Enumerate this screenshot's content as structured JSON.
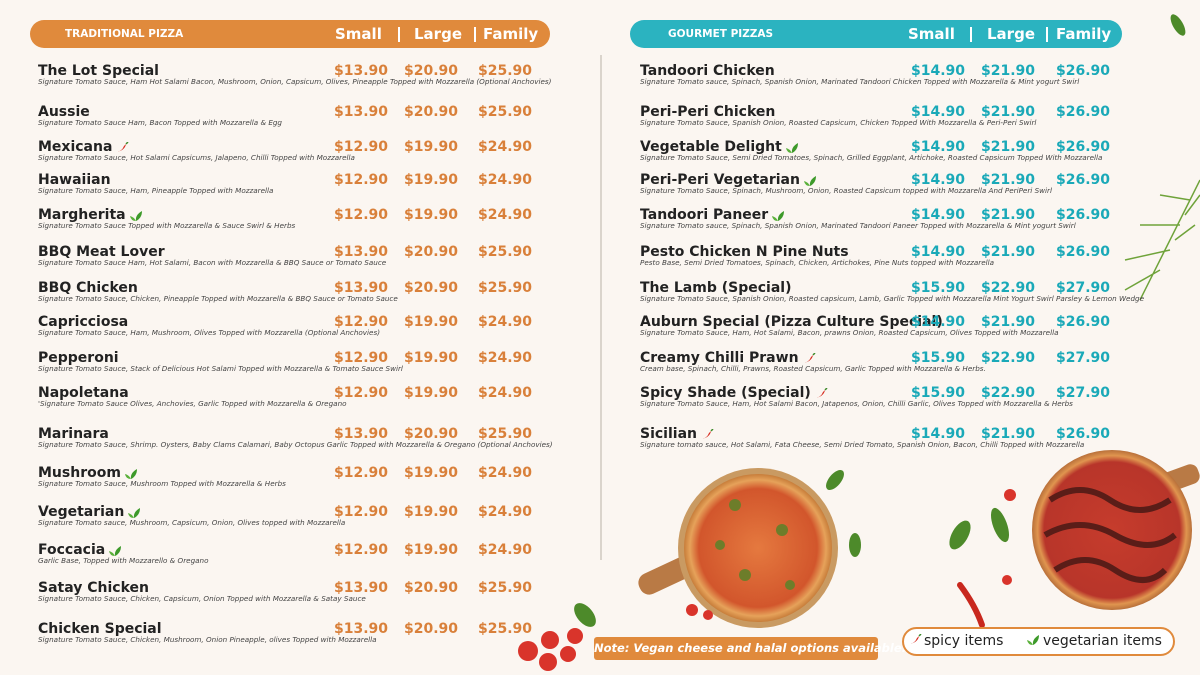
{
  "sections": [
    {
      "title": "TRADITIONAL PIZZA",
      "sizes": [
        "Small",
        "Large",
        "Family"
      ],
      "items": [
        {
          "name": "The Lot Special",
          "description": "Signature Tomato Sauce, Ham Hot Salami Bacon, Mushroom, Onion, Capsicum, Olives, Pineapple Topped with Mozzarella (Optional Anchovies)",
          "prices": [
            "$13.90",
            "$20.90",
            "$25.90"
          ]
        },
        {
          "name": "Aussie",
          "description": "Signature Tomato Sauce Ham, Bacon Topped with Mozzarella & Egg",
          "prices": [
            "$13.90",
            "$20.90",
            "$25.90"
          ]
        },
        {
          "name": "Mexicana",
          "tag": "spicy",
          "description": "Signature Tomato Sauce, Hot Salami Capsicums, Jalapeno, Chilli Topped with Mozzarella",
          "prices": [
            "$12.90",
            "$19.90",
            "$24.90"
          ]
        },
        {
          "name": "Hawaiian",
          "description": "Signature Tomato Sauce, Ham, Pineapple Topped with Mozzarella",
          "prices": [
            "$12.90",
            "$19.90",
            "$24.90"
          ]
        },
        {
          "name": "Margherita",
          "tag": "vegetarian",
          "description": "Signature Tomato Sauce Topped with Mozzarella & Sauce Swirl & Herbs",
          "prices": [
            "$12.90",
            "$19.90",
            "$24.90"
          ]
        },
        {
          "name": "BBQ Meat Lover",
          "description": "Signature Tomato Sauce Ham, Hot Salami, Bacon with Mozzarella & BBQ Sauce or Tomato Sauce",
          "prices": [
            "$13.90",
            "$20.90",
            "$25.90"
          ]
        },
        {
          "name": "BBQ Chicken",
          "description": "Signature Tomato Sauce, Chicken, Pineapple Topped with Mozzarella & BBQ Sauce or Tomato Sauce",
          "prices": [
            "$13.90",
            "$20.90",
            "$25.90"
          ]
        },
        {
          "name": "Capricciosa",
          "description": "Signature Tomato Sauce, Ham, Mushroom, Olives Topped with Mozzarella (Optional Anchovies)",
          "prices": [
            "$12.90",
            "$19.90",
            "$24.90"
          ]
        },
        {
          "name": "Pepperoni",
          "description": "Signature Tomato Sauce, Stack of Delicious Hot Salami Topped with Mozzarella & Tomato Sauce Swirl",
          "prices": [
            "$12.90",
            "$19.90",
            "$24.90"
          ]
        },
        {
          "name": "Napoletana",
          "description": "'Signature Tomato Sauce Olives, Anchovies, Garlic Topped with Mozzarella & Oregano",
          "prices": [
            "$12.90",
            "$19.90",
            "$24.90"
          ]
        },
        {
          "name": "Marinara",
          "description": "Signature Tomato Sauce, Shrimp. Oysters, Baby Clams Calamari, Baby Octopus Garlic Topped with Mozzarella & Oregano (Optional Anchovies)",
          "prices": [
            "$13.90",
            "$20.90",
            "$25.90"
          ]
        },
        {
          "name": "Mushroom",
          "tag": "vegetarian",
          "description": "Signature Tomato Sauce, Mushroom Topped with Mozzarella & Herbs",
          "prices": [
            "$12.90",
            "$19.90",
            "$24.90"
          ]
        },
        {
          "name": "Vegetarian",
          "tag": "vegetarian",
          "description": "Signature Tomato sauce, Mushroom, Capsicum, Onion, Olives topped with Mozzarella",
          "prices": [
            "$12.90",
            "$19.90",
            "$24.90"
          ]
        },
        {
          "name": "Foccacia",
          "tag": "vegetarian",
          "description": "Garlic Base, Topped with Mozzarello & Oregano",
          "prices": [
            "$12.90",
            "$19.90",
            "$24.90"
          ]
        },
        {
          "name": "Satay Chicken",
          "description": "Signature Tomato Sauce, Chicken, Capsicum, Onion Topped with Mozzarella & Satay Sauce",
          "prices": [
            "$13.90",
            "$20.90",
            "$25.90"
          ]
        },
        {
          "name": "Chicken Special",
          "description": "Signature Tomato Sauce, Chicken, Mushroom, Onion Pineapple, olives Topped with Mozzarella",
          "prices": [
            "$13.90",
            "$20.90",
            "$25.90"
          ]
        }
      ]
    },
    {
      "title": "GOURMET PIZZAS",
      "sizes": [
        "Small",
        "Large",
        "Family"
      ],
      "items": [
        {
          "name": "Tandoori Chicken",
          "description": "Signature Tomato sauce, Spinach, Spanish Onion, Marinated Tandoori Chicken Topped with Mozzarella & Mint yogurt Swirl",
          "prices": [
            "$14.90",
            "$21.90",
            "$26.90"
          ]
        },
        {
          "name": "Peri-Peri Chicken",
          "description": "Signature Tomato Sauce, Spanish Onion, Roasted Capsicum, Chicken Topped With Mozzarella & Peri-Peri Swirl",
          "prices": [
            "$14.90",
            "$21.90",
            "$26.90"
          ]
        },
        {
          "name": "Vegetable Delight",
          "tag": "vegetarian",
          "description": "Signature Tomato Sauce, Semi Dried Tomatoes, Spinach, Grilled Eggplant, Artichoke, Roasted Capsicum Topped With Mozzarella",
          "prices": [
            "$14.90",
            "$21.90",
            "$26.90"
          ]
        },
        {
          "name": "Peri-Peri Vegetarian",
          "tag": "vegetarian",
          "description": "Signature Tomato Sauce, Spinach, Mushroom, Onion, Roasted Capsicum topped with Mozzarella And PeriPeri Swirl",
          "prices": [
            "$14.90",
            "$21.90",
            "$26.90"
          ]
        },
        {
          "name": "Tandoori Paneer",
          "tag": "vegetarian",
          "description": "Signature Tomato sauce, Spinach, Spanish Onion, Marinated Tandoori Paneer Topped with Mozzarella & Mint yogurt Swirl",
          "prices": [
            "$14.90",
            "$21.90",
            "$26.90"
          ]
        },
        {
          "name": "Pesto Chicken N Pine Nuts",
          "description": "Pesto Base, Semi Dried Tomatoes, Spinach, Chicken, Artichokes, Pine Nuts topped with Mozzarella",
          "prices": [
            "$14.90",
            "$21.90",
            "$26.90"
          ]
        },
        {
          "name": "The Lamb (Special)",
          "description": "Signature Tomato Sauce, Spanish Onion, Roasted capsicum, Lamb, Garlic Topped with Mozzarella Mint Yogurt Swirl Parsley & Lemon Wedge",
          "prices": [
            "$15.90",
            "$22.90",
            "$27.90"
          ]
        },
        {
          "name": "Auburn Special (Pizza Culture Special)",
          "description": "Signature Tomato Sauce, Ham, Hot Salami, Bacon, prawns Onion, Roasted Capsicum, Olives Topped with Mozzarella",
          "prices": [
            "$14.90",
            "$21.90",
            "$26.90"
          ]
        },
        {
          "name": "Creamy Chilli Prawn",
          "tag": "spicy",
          "description": "Cream base, Spinach, Chilli, Prawns, Roasted Capsicum, Garlic Topped with Mozzarella & Herbs.",
          "prices": [
            "$15.90",
            "$22.90",
            "$27.90"
          ]
        },
        {
          "name": "Spicy Shade (Special)",
          "tag": "spicy",
          "description": "Signature Tomato Sauce, Ham, Hot Salami Bacon, Jatapenos, Onion, Chilli Garlic, Olives Topped with Mozzarella & Herbs",
          "prices": [
            "$15.90",
            "$22.90",
            "$27.90"
          ]
        },
        {
          "name": "Sicilian",
          "tag": "spicy",
          "description": "Signature tomato sauce, Hot Salami, Fata Cheese, Semi Dried Tomato, Spanish Onion, Bacon, Chilli Topped with Mozzarella",
          "prices": [
            "$14.90",
            "$21.90",
            "$26.90"
          ]
        }
      ]
    }
  ],
  "note": "Note: Vegan cheese and halal options available.",
  "legend": {
    "spicy": "spicy items",
    "vegetarian": "vegetarian items"
  }
}
